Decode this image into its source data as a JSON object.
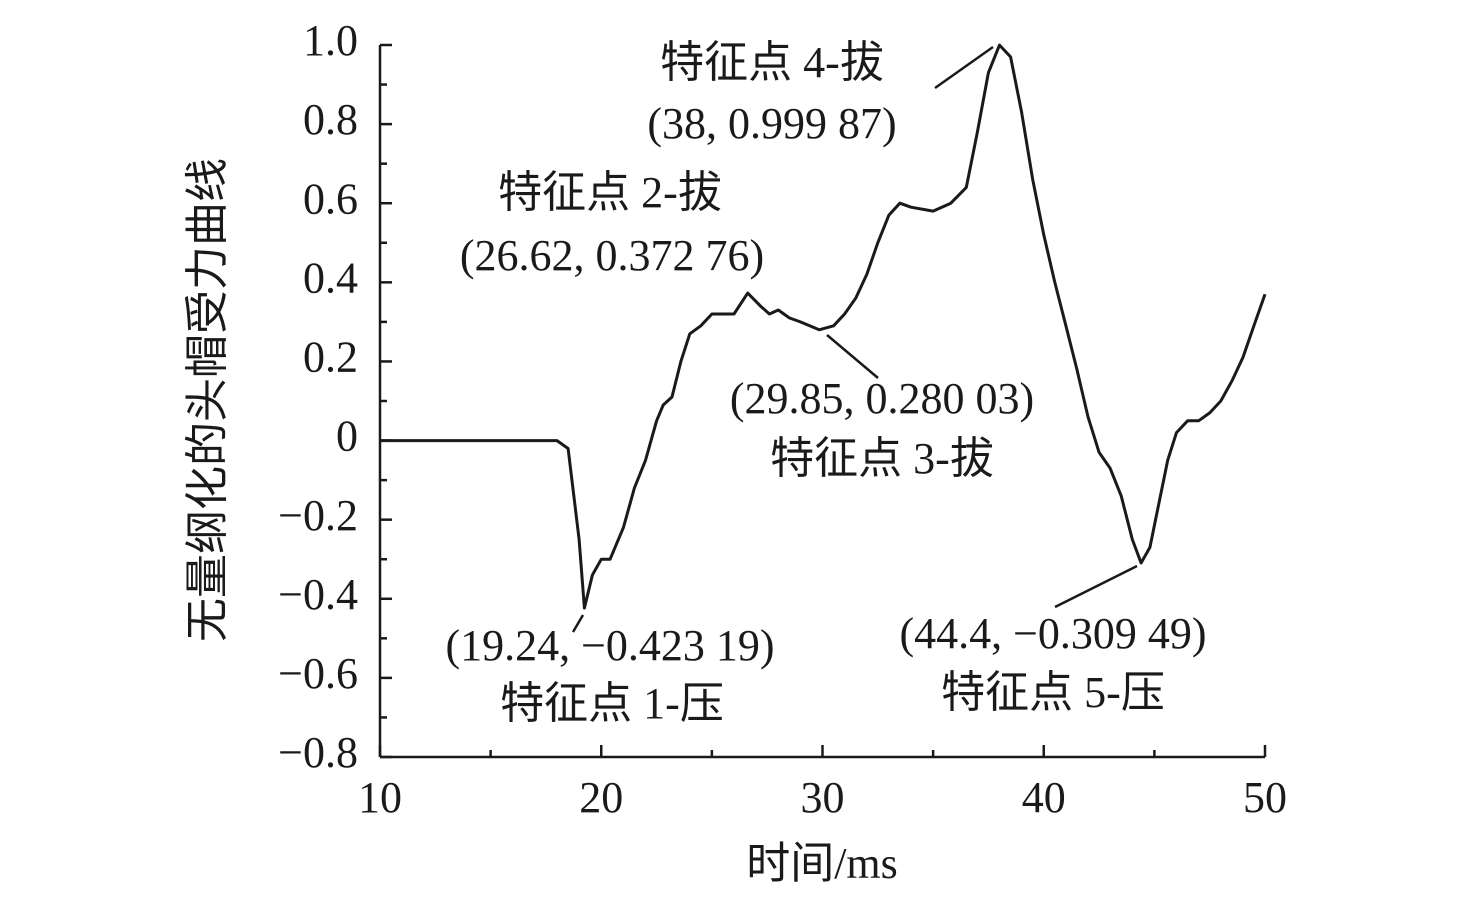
{
  "chart_data": {
    "type": "line",
    "xlabel": "时间/ms",
    "ylabel": "无量纲化的头帽受力曲线",
    "x": [
      10,
      18,
      18.5,
      19.0,
      19.24,
      19.6,
      20.0,
      20.4,
      21.0,
      21.5,
      22.0,
      22.5,
      22.8,
      23.2,
      23.6,
      24.0,
      24.5,
      25.0,
      25.5,
      26.0,
      26.62,
      27.2,
      27.6,
      28.0,
      28.5,
      29.0,
      29.85,
      30.5,
      31.0,
      31.5,
      32.0,
      32.5,
      33.0,
      33.5,
      34.0,
      35.0,
      35.8,
      36.5,
      37.0,
      37.5,
      38.0,
      38.5,
      39.0,
      39.5,
      40.0,
      40.5,
      41.0,
      41.5,
      42.0,
      42.5,
      43.0,
      43.5,
      44.0,
      44.4,
      44.8,
      45.2,
      45.6,
      46.0,
      46.5,
      47.0,
      47.5,
      48.0,
      48.5,
      49.0,
      49.5,
      50.0
    ],
    "values": [
      0,
      0,
      -0.02,
      -0.25,
      -0.42319,
      -0.34,
      -0.3,
      -0.3,
      -0.22,
      -0.12,
      -0.05,
      0.05,
      0.09,
      0.11,
      0.2,
      0.27,
      0.29,
      0.32,
      0.32,
      0.32,
      0.37276,
      0.34,
      0.32,
      0.33,
      0.31,
      0.3,
      0.28003,
      0.29,
      0.32,
      0.36,
      0.42,
      0.5,
      0.57,
      0.6,
      0.59,
      0.58,
      0.6,
      0.64,
      0.78,
      0.93,
      0.99987,
      0.97,
      0.83,
      0.66,
      0.52,
      0.4,
      0.29,
      0.18,
      0.06,
      -0.03,
      -0.07,
      -0.14,
      -0.25,
      -0.30949,
      -0.27,
      -0.16,
      -0.05,
      0.02,
      0.05,
      0.05,
      0.07,
      0.1,
      0.15,
      0.21,
      0.29,
      0.37
    ],
    "color": "#1a1a1a",
    "xlim": [
      10,
      50
    ],
    "xticks": [
      10,
      20,
      30,
      40,
      50
    ],
    "xminorticks": [
      15,
      25,
      35,
      45
    ],
    "ylim": [
      -0.8,
      1.0
    ],
    "yticks": [
      {
        "value": -0.8,
        "label": "−0.8"
      },
      {
        "value": -0.6,
        "label": "−0.6"
      },
      {
        "value": -0.4,
        "label": "−0.4"
      },
      {
        "value": -0.2,
        "label": "−0.2"
      },
      0,
      0.2,
      0.4,
      0.6,
      0.8,
      {
        "value": 1,
        "label": "1.0"
      }
    ],
    "yminorticks": [
      -0.7,
      -0.5,
      -0.3,
      -0.1,
      0.1,
      0.3,
      0.5,
      0.7,
      0.9
    ],
    "annotations": [
      {
        "text": "特征点 1-压",
        "coord": "(19.24, −0.423 19)"
      },
      {
        "text": "特征点 2-拔",
        "coord": "(26.62, 0.372 76)"
      },
      {
        "text": "特征点 3-拔",
        "coord": "(29.85, 0.280 03)"
      },
      {
        "text": "特征点 4-拔",
        "coord": "(38, 0.999 87)"
      },
      {
        "text": "特征点 5-压",
        "coord": "(44.4, −0.309 49)"
      }
    ]
  }
}
